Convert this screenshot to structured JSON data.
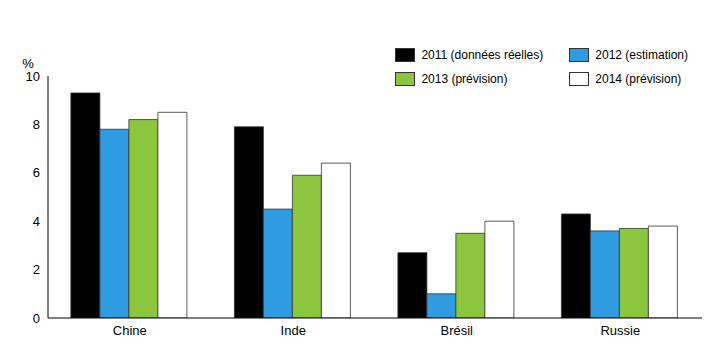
{
  "chart_data": {
    "type": "bar",
    "y_label": "%",
    "categories": [
      "Chine",
      "Inde",
      "Brésil",
      "Russie"
    ],
    "series": [
      {
        "name": "2011 (données réelles)",
        "color": "#000000",
        "values": [
          9.3,
          7.9,
          2.7,
          4.3
        ]
      },
      {
        "name": "2012 (estimation)",
        "color": "#2f9be0",
        "values": [
          7.8,
          4.5,
          1.0,
          3.6
        ]
      },
      {
        "name": "2013 (prévision)",
        "color": "#8cc63f",
        "values": [
          8.2,
          5.9,
          3.5,
          3.7
        ]
      },
      {
        "name": "2014 (prévision)",
        "color": "#ffffff",
        "values": [
          8.5,
          6.4,
          4.0,
          3.8
        ]
      }
    ],
    "ylim": [
      0,
      10
    ],
    "yticks": [
      0,
      2,
      4,
      6,
      8,
      10
    ],
    "grid": false,
    "legend": "upper right"
  }
}
